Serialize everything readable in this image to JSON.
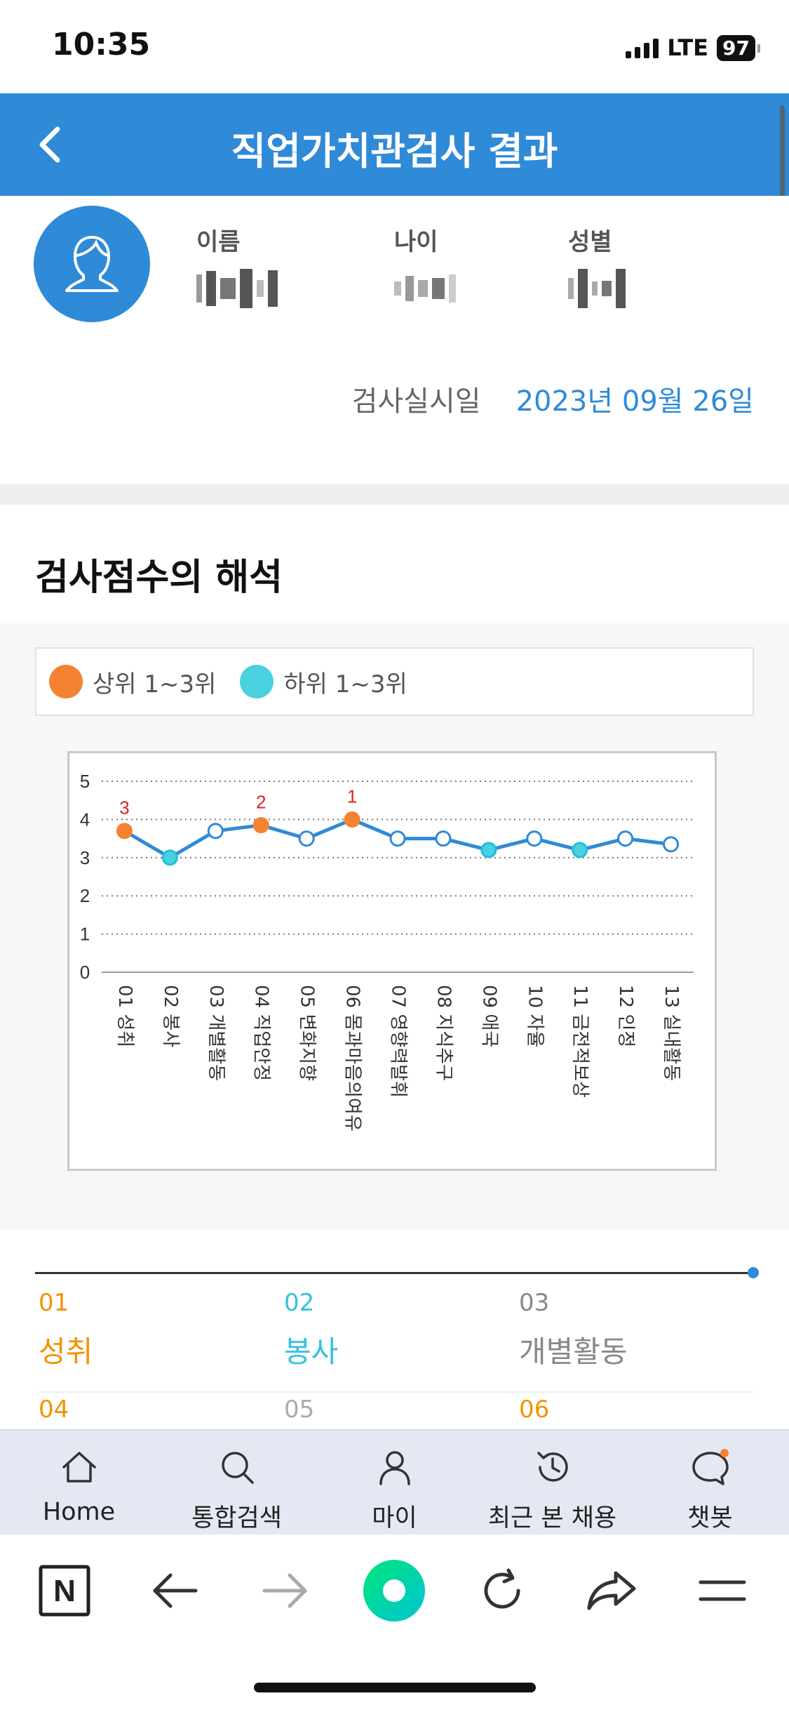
{
  "status": {
    "time": "10:35",
    "network": "LTE",
    "battery": "97"
  },
  "header": {
    "title": "직업가치관검사 결과"
  },
  "profile": {
    "name_label": "이름",
    "age_label": "나이",
    "gender_label": "성별",
    "exam_date_label": "검사실시일",
    "exam_date_value": "2023년 09월 26일"
  },
  "section": {
    "title": "검사점수의 해석"
  },
  "legend": {
    "top": {
      "label": "상위 1~3위",
      "color": "#f58231"
    },
    "bottom": {
      "label": "하위 1~3위",
      "color": "#4ad0de"
    }
  },
  "chart_data": {
    "type": "line",
    "categories": [
      "01 성취",
      "02 봉사",
      "03 개별활동",
      "04 직업안정",
      "05 변화지향",
      "06 몸과마음의여유",
      "07 영향력발휘",
      "08 지식추구",
      "09 애국",
      "10 자율",
      "11 금전적보상",
      "12 인정",
      "13 실내활동"
    ],
    "values": [
      3.7,
      3.0,
      3.7,
      3.85,
      3.5,
      4.0,
      3.5,
      3.5,
      3.2,
      3.5,
      3.2,
      3.5,
      3.35
    ],
    "ylim": [
      0,
      5
    ],
    "yticks": [
      "0",
      "1",
      "2",
      "3",
      "4",
      "5"
    ],
    "grid": true,
    "top_ranks": [
      {
        "index": 0,
        "rank": "3"
      },
      {
        "index": 3,
        "rank": "2"
      },
      {
        "index": 5,
        "rank": "1"
      }
    ],
    "bottom_indices": [
      1,
      8,
      10
    ],
    "line_color": "#2f8ad8",
    "rank_label_color": "#e02020"
  },
  "rankings": [
    {
      "num": "01",
      "name": "성취",
      "color": "#f39200"
    },
    {
      "num": "02",
      "name": "봉사",
      "color": "#33c2dd"
    },
    {
      "num": "03",
      "name": "개별활동",
      "color": "#888888"
    },
    {
      "num": "04",
      "name": "",
      "color": "#f39200"
    },
    {
      "num": "05",
      "name": "",
      "color": "#aaaaaa"
    },
    {
      "num": "06",
      "name": "",
      "color": "#f39200"
    }
  ],
  "app_nav": [
    {
      "icon": "home-icon",
      "label": "Home"
    },
    {
      "icon": "search-icon",
      "label": "통합검색"
    },
    {
      "icon": "person-icon",
      "label": "마이"
    },
    {
      "icon": "history-icon",
      "label": "최근 본 채용"
    },
    {
      "icon": "chat-icon",
      "label": "챗봇"
    }
  ],
  "browser": {
    "logo": "N"
  }
}
